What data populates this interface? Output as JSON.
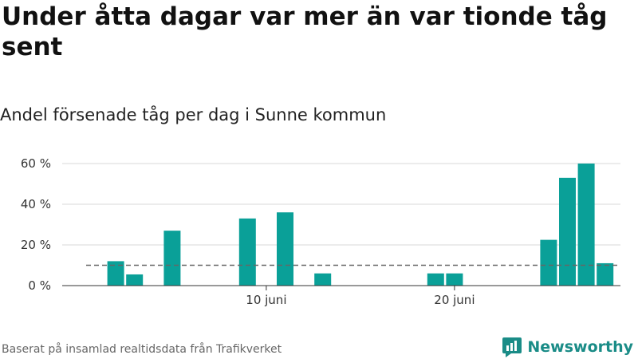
{
  "title": "Under åtta dagar var mer än var tionde tåg sent",
  "subtitle": "Andel försenade tåg per dag i Sunne kommun",
  "footer": "Baserat på insamlad realtidsdata från Trafikverket",
  "brand": "Newsworthy",
  "colors": {
    "bar": "#0aa098",
    "grid": "#d9d9d9",
    "reference": "#666666",
    "brand": "#1a8c87"
  },
  "chart_data": {
    "type": "bar",
    "x_start": "2023-06-01",
    "x_end": "2023-06-29",
    "x_tick_labels": [
      {
        "date": "2023-06-10",
        "label": "10 juni"
      },
      {
        "date": "2023-06-20",
        "label": "20 juni"
      }
    ],
    "y_ticks": [
      {
        "value": 0,
        "label": "0 %"
      },
      {
        "value": 20,
        "label": "20 %"
      },
      {
        "value": 40,
        "label": "40 %"
      },
      {
        "value": 60,
        "label": "60 %"
      }
    ],
    "ylim": [
      0,
      60
    ],
    "reference_line": 10,
    "bars": [
      {
        "date": "2023-06-02",
        "value": 12
      },
      {
        "date": "2023-06-03",
        "value": 5.5
      },
      {
        "date": "2023-06-05",
        "value": 27
      },
      {
        "date": "2023-06-09",
        "value": 33
      },
      {
        "date": "2023-06-11",
        "value": 36
      },
      {
        "date": "2023-06-13",
        "value": 6
      },
      {
        "date": "2023-06-19",
        "value": 6
      },
      {
        "date": "2023-06-20",
        "value": 6
      },
      {
        "date": "2023-06-25",
        "value": 22.5
      },
      {
        "date": "2023-06-26",
        "value": 53
      },
      {
        "date": "2023-06-27",
        "value": 60
      },
      {
        "date": "2023-06-28",
        "value": 11
      }
    ],
    "grid": true
  }
}
